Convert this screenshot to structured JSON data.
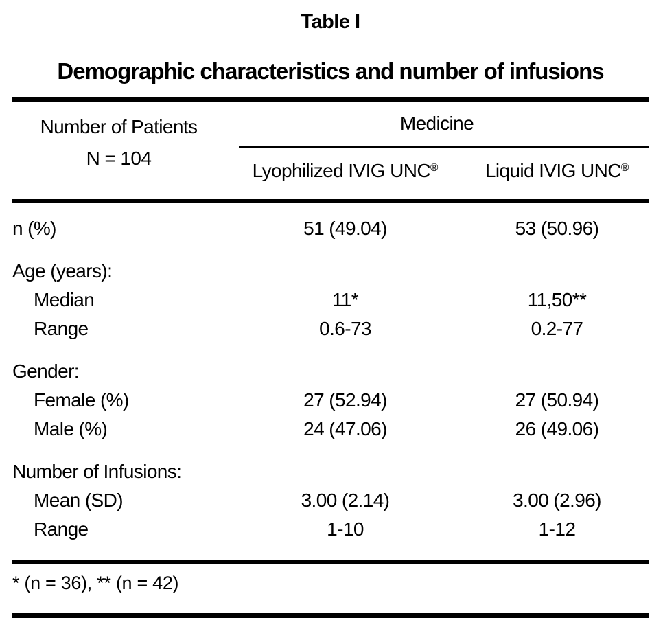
{
  "title": "Table I",
  "subtitle": "Demographic characteristics and number of infusions",
  "table": {
    "stub_header": {
      "line1": "Number of Patients",
      "line2": "N = 104"
    },
    "group_header": "Medicine",
    "columns": [
      {
        "name": "Lyophilized IVIG UNC",
        "mark": "®"
      },
      {
        "name": "Liquid IVIG UNC",
        "mark": "®"
      }
    ],
    "rows": [
      {
        "label": "n (%)",
        "indent": false,
        "group_start": false,
        "col1": "51 (49.04)",
        "col2": "53 (50.96)"
      },
      {
        "label": "Age (years):",
        "indent": false,
        "group_start": true,
        "col1": "",
        "col2": ""
      },
      {
        "label": "Median",
        "indent": true,
        "group_start": false,
        "col1": "11*",
        "col2": "11,50**"
      },
      {
        "label": "Range",
        "indent": true,
        "group_start": false,
        "col1": "0.6-73",
        "col2": "0.2-77"
      },
      {
        "label": "Gender:",
        "indent": false,
        "group_start": true,
        "col1": "",
        "col2": ""
      },
      {
        "label": "Female (%)",
        "indent": true,
        "group_start": false,
        "col1": "27 (52.94)",
        "col2": "27 (50.94)"
      },
      {
        "label": "Male (%)",
        "indent": true,
        "group_start": false,
        "col1": "24 (47.06)",
        "col2": "26 (49.06)"
      },
      {
        "label": "Number of Infusions:",
        "indent": false,
        "group_start": true,
        "col1": "",
        "col2": ""
      },
      {
        "label": "Mean (SD)",
        "indent": true,
        "group_start": false,
        "col1": "3.00 (2.14)",
        "col2": "3.00 (2.96)"
      },
      {
        "label": "Range",
        "indent": true,
        "group_start": false,
        "col1": "1-10",
        "col2": "1-12"
      }
    ],
    "footnote": "* (n = 36), ** (n = 42)"
  },
  "colors": {
    "text": "#000000",
    "background": "#ffffff",
    "rule": "#000000"
  }
}
